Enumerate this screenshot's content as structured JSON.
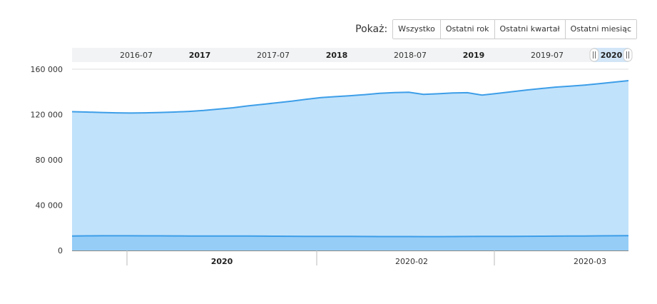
{
  "range_selector": {
    "label": "Pokaż:",
    "buttons": [
      "Wszystko",
      "Ostatni rok",
      "Ostatni kwartał",
      "Ostatni miesiąc"
    ]
  },
  "navigator": {
    "labels": [
      {
        "text": "2016-07",
        "bold": false
      },
      {
        "text": "2017",
        "bold": true
      },
      {
        "text": "2017-07",
        "bold": false
      },
      {
        "text": "2018",
        "bold": true
      },
      {
        "text": "2018-07",
        "bold": false
      },
      {
        "text": "2019",
        "bold": true
      },
      {
        "text": "2019-07",
        "bold": false
      },
      {
        "text": "2020",
        "bold": true
      }
    ],
    "selected_range": [
      "2020-01",
      "2020-03"
    ]
  },
  "colors": {
    "upper_area": "#c1e2fb",
    "upper_line": "#3d9ee8",
    "lower_area": "#96cdf7",
    "lower_line": "#3d9ee8",
    "grid": "#dddddd",
    "navigator_bg": "#f2f3f4",
    "navigator_selected": "#d2e6f8"
  },
  "chart_data": {
    "type": "area",
    "title": "",
    "xlabel": "",
    "ylabel": "",
    "ylim": [
      0,
      160000
    ],
    "yticks": [
      "0",
      "40 000",
      "80 000",
      "120 000",
      "160 000"
    ],
    "xticks": [
      {
        "text": "2020",
        "bold": true
      },
      {
        "text": "2020-02",
        "bold": false
      },
      {
        "text": "2020-03",
        "bold": false
      }
    ],
    "x": [
      "2019-12-26",
      "2019-12-28",
      "2019-12-30",
      "2020-01-01",
      "2020-01-03",
      "2020-01-05",
      "2020-01-07",
      "2020-01-09",
      "2020-01-11",
      "2020-01-13",
      "2020-01-15",
      "2020-01-17",
      "2020-01-19",
      "2020-01-21",
      "2020-01-23",
      "2020-01-25",
      "2020-01-27",
      "2020-01-29",
      "2020-01-31",
      "2020-02-02",
      "2020-02-04",
      "2020-02-06",
      "2020-02-08",
      "2020-02-10",
      "2020-02-12",
      "2020-02-14",
      "2020-02-16",
      "2020-02-18",
      "2020-02-20",
      "2020-02-22",
      "2020-02-24",
      "2020-02-26",
      "2020-02-28",
      "2020-03-01",
      "2020-03-03",
      "2020-03-05",
      "2020-03-07",
      "2020-03-09",
      "2020-03-11"
    ],
    "series": [
      {
        "values": [
          122500,
          122200,
          121800,
          121500,
          121300,
          121500,
          121800,
          122200,
          122800,
          123600,
          124800,
          126000,
          127600,
          129000,
          130400,
          131800,
          133500,
          134900,
          135800,
          136600,
          137600,
          138700,
          139400,
          139700,
          137800,
          138300,
          139000,
          139300,
          137200,
          138600,
          140100,
          141600,
          142900,
          144200,
          145100,
          146000,
          147200,
          148600,
          149900
        ]
      },
      {
        "values": [
          12800,
          12900,
          13000,
          13000,
          12950,
          12900,
          12900,
          12850,
          12800,
          12800,
          12750,
          12700,
          12700,
          12650,
          12600,
          12550,
          12500,
          12500,
          12450,
          12400,
          12350,
          12300,
          12300,
          12300,
          12250,
          12250,
          12300,
          12350,
          12400,
          12450,
          12500,
          12550,
          12600,
          12650,
          12700,
          12800,
          12900,
          13000,
          13100
        ]
      }
    ]
  }
}
